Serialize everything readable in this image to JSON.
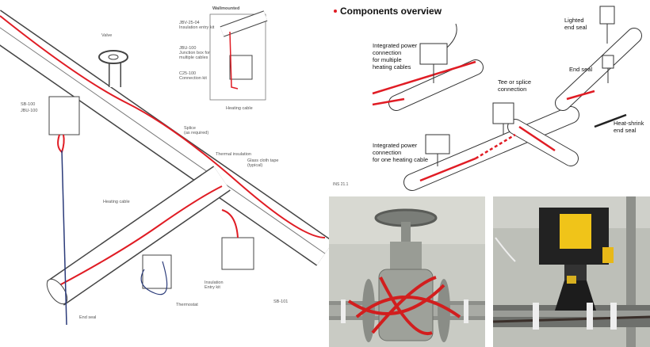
{
  "installation_diagram": {
    "labels": [
      {
        "lines": [
          "Valve"
        ]
      },
      {
        "lines": [
          "SB-100"
        ]
      },
      {
        "lines": [
          "JBU-100"
        ]
      },
      {
        "lines": [
          "Splice",
          "(as required)"
        ]
      },
      {
        "lines": [
          "Thermal insulation"
        ]
      },
      {
        "lines": [
          "Glass cloth tape",
          "(typical)"
        ]
      },
      {
        "lines": [
          "Heating cable"
        ]
      },
      {
        "lines": [
          "Insulation",
          "Entry kit"
        ]
      },
      {
        "lines": [
          "End seal"
        ]
      },
      {
        "lines": [
          "Thermostat"
        ]
      },
      {
        "lines": [
          "SB-101"
        ]
      }
    ],
    "inset": {
      "title": "Wallmounted",
      "labels": [
        {
          "lines": [
            "JBV-25-04",
            "Insulation entry kit"
          ]
        },
        {
          "lines": [
            "JBU-100",
            "Junction box for",
            "multiple cables"
          ]
        },
        {
          "lines": [
            "C25-100",
            "Connection kit"
          ]
        },
        {
          "lines": [
            "Heating cable"
          ]
        }
      ]
    }
  },
  "components_overview": {
    "title": "Components overview",
    "labels": [
      {
        "lines": [
          "Integrated power",
          "connection",
          "for multiple",
          "heating cables"
        ]
      },
      {
        "lines": [
          "Tee or splice",
          "connection"
        ]
      },
      {
        "lines": [
          "Lighted",
          "end seal"
        ]
      },
      {
        "lines": [
          "End seal"
        ]
      },
      {
        "lines": [
          "Heat-shrink",
          "end seal"
        ]
      },
      {
        "lines": [
          "Integrated power",
          "connection",
          "for one heating cable"
        ]
      }
    ],
    "code": "INS 21.1"
  }
}
